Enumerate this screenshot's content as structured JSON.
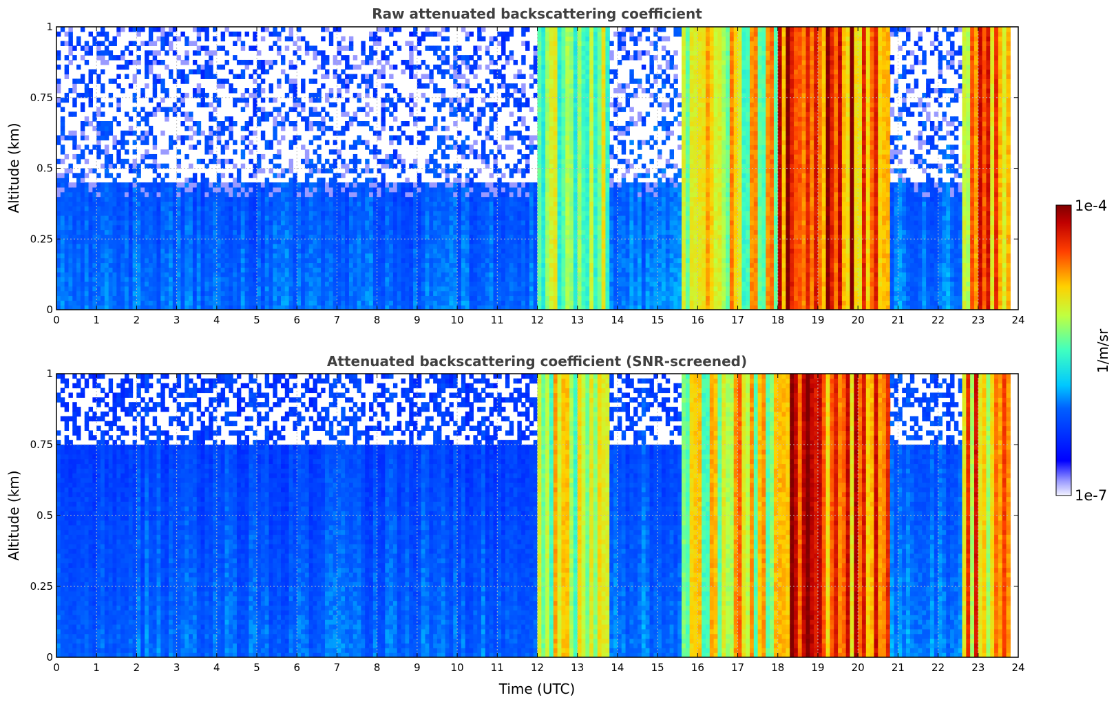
{
  "chart_data": [
    {
      "type": "heatmap",
      "title": "Raw attenuated backscattering coefficient",
      "xlabel": "",
      "ylabel": "Altitude (km)",
      "xlim": [
        0,
        24
      ],
      "ylim": [
        0,
        1
      ],
      "x_ticks": [
        "0",
        "1",
        "2",
        "3",
        "4",
        "5",
        "6",
        "7",
        "8",
        "9",
        "10",
        "11",
        "12",
        "13",
        "14",
        "15",
        "16",
        "17",
        "18",
        "19",
        "20",
        "21",
        "22",
        "23",
        "24"
      ],
      "y_ticks": [
        "0",
        "0.25",
        "0.5",
        "0.75",
        "1"
      ],
      "grid": true,
      "screened": false,
      "colorbar": {
        "min_label": "1e-7",
        "max_label": "1e-4",
        "label": "1/m/sr",
        "scale": "log",
        "colormap": "jet"
      },
      "segments": [
        {
          "t0": 0,
          "t1": 12,
          "level": 0.28
        },
        {
          "t0": 12,
          "t1": 13.8,
          "level": 0.62
        },
        {
          "t0": 13.8,
          "t1": 15.6,
          "level": 0.3
        },
        {
          "t0": 15.6,
          "t1": 18,
          "level": 0.66
        },
        {
          "t0": 18,
          "t1": 20.8,
          "level": 0.84
        },
        {
          "t0": 20.8,
          "t1": 22.6,
          "level": 0.3
        },
        {
          "t0": 22.6,
          "t1": 23.8,
          "level": 0.76
        }
      ]
    },
    {
      "type": "heatmap",
      "title": "Attenuated backscattering coefficient (SNR-screened)",
      "xlabel": "Time (UTC)",
      "ylabel": "Altitude (km)",
      "xlim": [
        0,
        24
      ],
      "ylim": [
        0,
        1
      ],
      "x_ticks": [
        "0",
        "1",
        "2",
        "3",
        "4",
        "5",
        "6",
        "7",
        "8",
        "9",
        "10",
        "11",
        "12",
        "13",
        "14",
        "15",
        "16",
        "17",
        "18",
        "19",
        "20",
        "21",
        "22",
        "23",
        "24"
      ],
      "y_ticks": [
        "0",
        "0.25",
        "0.5",
        "0.75",
        "1"
      ],
      "grid": true,
      "screened": true,
      "colorbar": {
        "min_label": "1e-7",
        "max_label": "1e-4",
        "label": "1/m/sr",
        "scale": "log",
        "colormap": "jet"
      },
      "segments": [
        {
          "t0": 0,
          "t1": 12,
          "level": 0.28
        },
        {
          "t0": 12,
          "t1": 13.8,
          "level": 0.62
        },
        {
          "t0": 13.8,
          "t1": 15.6,
          "level": 0.3
        },
        {
          "t0": 15.6,
          "t1": 18,
          "level": 0.66
        },
        {
          "t0": 18,
          "t1": 20.8,
          "level": 0.84
        },
        {
          "t0": 20.8,
          "t1": 22.6,
          "level": 0.3
        },
        {
          "t0": 22.6,
          "t1": 23.8,
          "level": 0.76
        }
      ]
    }
  ],
  "colorbar": {
    "max_label": "1e-4",
    "min_label": "1e-7",
    "label": "1/m/sr"
  }
}
